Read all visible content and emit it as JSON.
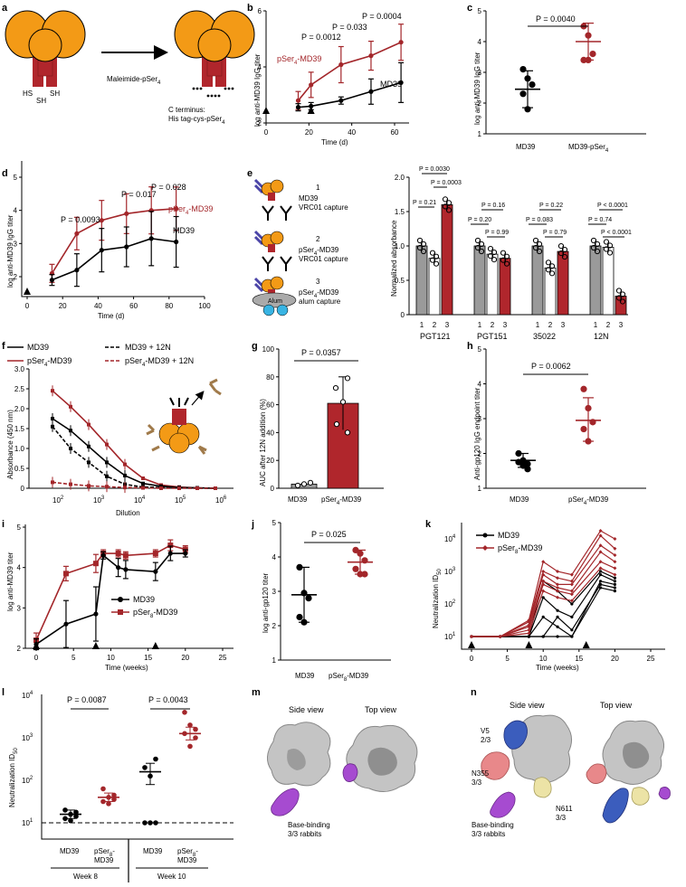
{
  "colors": {
    "red": "#a3262a",
    "black": "#000000",
    "orange": "#f39a16",
    "darkred": "#b0262c",
    "grey": "#9a9a9a",
    "cyan": "#38b4e3",
    "purple": "#a64bd0",
    "blue": "#3b5dbd",
    "pink": "#e8888a",
    "yellow": "#ece3a6"
  },
  "panels": {
    "a": {
      "letter": "a",
      "reagent": "Maleimide-pSer",
      "reagent_sub": "4",
      "terminus1": "C terminus:",
      "terminus2": "His tag-cys-pSer",
      "terminus2_sub": "4",
      "hs1": "HS",
      "sh": "SH",
      "hs2": "SH"
    },
    "b": {
      "letter": "b",
      "ylabel": "log anti-MD39 IgG titer",
      "xlabel": "Time (d)",
      "xticks": [
        "0",
        "20",
        "40",
        "60"
      ],
      "yticks": [
        "2",
        "4",
        "6"
      ],
      "label_red": "pSer",
      "label_red_sub": "4",
      "label_red_end": "-MD39",
      "label_black": "MD39",
      "pvals": [
        "P = 0.0012",
        "P = 0.033",
        "P = 0.0004"
      ]
    },
    "c": {
      "letter": "c",
      "ylabel": "log anti-MD39 IgG titer",
      "yticks": [
        "1",
        "2",
        "3",
        "4",
        "5"
      ],
      "cat1": "MD39",
      "cat2": "MD39-pSer",
      "cat2_sub": "4",
      "pval": "P = 0.0040"
    },
    "d": {
      "letter": "d",
      "ylabel": "log anti-MD39 IgG titer",
      "xlabel": "Time (d)",
      "xticks": [
        "0",
        "20",
        "40",
        "60",
        "80",
        "100"
      ],
      "yticks": [
        "2",
        "3",
        "4",
        "5"
      ],
      "label_red": "pSer",
      "label_red_sub": "4",
      "label_red_end": "-MD39",
      "label_black": "MD39",
      "pvals": [
        "P = 0.0093",
        "P = 0.017",
        "P = 0.028"
      ]
    },
    "e": {
      "letter": "e",
      "ylabel": "Normalized absorbance",
      "yticks": [
        "0",
        "0.5",
        "1.0",
        "1.5",
        "2.0"
      ],
      "groups": [
        "PGT121",
        "PGT151",
        "35022",
        "12N"
      ],
      "lane_labels": [
        "1",
        "2",
        "3"
      ],
      "cap1_num": "1",
      "cap1a": "MD39",
      "cap1b": "VRC01 capture",
      "cap2_num": "2",
      "cap2a": "pSer",
      "cap2a_sub": "4",
      "cap2a_end": "-MD39",
      "cap2b": "VRC01 capture",
      "cap3_num": "3",
      "cap3a": "pSer",
      "cap3a_sub": "4",
      "cap3a_end": "-MD39",
      "cap3b": "alum capture",
      "alum": "Alum",
      "bars": [
        [
          1.0,
          0.82,
          1.6
        ],
        [
          1.0,
          0.88,
          0.82
        ],
        [
          1.0,
          0.68,
          0.92
        ],
        [
          1.0,
          0.98,
          0.27
        ]
      ],
      "pvals": {
        "p121a": "P = 0.0030",
        "p121b": "P = 0.0003",
        "p121c": "P = 0.21",
        "p151a": "P = 0.16",
        "p151b": "P = 0.20",
        "p151c": "P = 0.99",
        "p350a": "P = 0.22",
        "p350b": "P = 0.083",
        "p350c": "P = 0.79",
        "p12a": "P < 0.0001",
        "p12b": "P = 0.74",
        "p12c": "P < 0.0001"
      }
    },
    "f": {
      "letter": "f",
      "ylabel": "Absorbance (450 nm)",
      "xlabel": "Dilution",
      "yticks": [
        "0",
        "0.5",
        "1.0",
        "1.5",
        "2.0",
        "2.5",
        "3.0"
      ],
      "xt1": "10",
      "xt1e": "2",
      "xt2": "10",
      "xt2e": "3",
      "xt3": "10",
      "xt3e": "4",
      "xt4": "10",
      "xt4e": "5",
      "xt5": "10",
      "xt5e": "6",
      "leg1": "MD39",
      "leg2": "pSer",
      "leg2_sub": "4",
      "leg2_end": "-MD39",
      "leg3": "MD39 + 12N",
      "leg4": "pSer",
      "leg4_sub": "4",
      "leg4_end": "-MD39 + 12N"
    },
    "g": {
      "letter": "g",
      "ylabel": "AUC after 12N addition (%)",
      "yticks": [
        "0",
        "20",
        "40",
        "60",
        "80",
        "100"
      ],
      "cat1": "MD39",
      "cat2": "pSer",
      "cat2_sub": "4",
      "cat2_end": "-MD39",
      "pval": "P = 0.0357",
      "values": [
        3,
        61
      ]
    },
    "h": {
      "letter": "h",
      "ylabel": "Anti-gp120 IgG endpoint titer",
      "yticks": [
        "1",
        "2",
        "3",
        "4",
        "5"
      ],
      "cat1": "MD39",
      "cat2": "pSer",
      "cat2_sub": "4",
      "cat2_end": "-MD39",
      "pval": "P = 0.0062"
    },
    "i": {
      "letter": "i",
      "ylabel": "log anti-MD39 titer",
      "xlabel": "Time (weeks)",
      "xticks": [
        "0",
        "5",
        "10",
        "15",
        "20",
        "25"
      ],
      "yticks": [
        "2",
        "3",
        "4",
        "5"
      ],
      "leg1": "MD39",
      "leg2": "pSer",
      "leg2_sub": "8",
      "leg2_end": "-MD39"
    },
    "j": {
      "letter": "j",
      "ylabel": "log anti-gp120 titer",
      "yticks": [
        "1",
        "2",
        "3",
        "4",
        "5"
      ],
      "cat1": "MD39",
      "cat2": "pSer",
      "cat2_sub": "8",
      "cat2_end": "-MD39",
      "pval": "P = 0.025"
    },
    "k": {
      "letter": "k",
      "ylabel": "Neutralization ID",
      "ylabel_sub": "50",
      "xlabel": "Time (weeks)",
      "xticks": [
        "0",
        "5",
        "10",
        "15",
        "20",
        "25"
      ],
      "yt1": "10",
      "yt1e": "1",
      "yt2": "10",
      "yt2e": "2",
      "yt3": "10",
      "yt3e": "3",
      "yt4": "10",
      "yt4e": "4",
      "leg1": "MD39",
      "leg2": "pSer",
      "leg2_sub": "8",
      "leg2_end": "-MD39"
    },
    "l": {
      "letter": "l",
      "ylabel": "Neutralization ID",
      "ylabel_sub": "50",
      "yt1": "10",
      "yt1e": "1",
      "yt2": "10",
      "yt2e": "2",
      "yt3": "10",
      "yt3e": "3",
      "yt4": "10",
      "yt4e": "4",
      "cat1": "MD39",
      "cat2a": "pSer",
      "cat2a_sub": "8",
      "cat2b": "MD39",
      "cat3": "MD39",
      "cat4a": "pSer",
      "cat4a_sub": "8",
      "cat4b": "MD39",
      "week1": "Week 8",
      "week2": "Week 10",
      "pval1": "P = 0.0087",
      "pval2": "P = 0.0043"
    },
    "m": {
      "letter": "m",
      "side": "Side view",
      "top": "Top view",
      "base1": "Base-binding",
      "base2": "3/3 rabbits"
    },
    "n": {
      "letter": "n",
      "side": "Side view",
      "top": "Top view",
      "v5": "V5",
      "v5n": "2/3",
      "n355": "N355",
      "n355n": "3/3",
      "n611": "N611",
      "n611n": "3/3",
      "base1": "Base-binding",
      "base2": "3/3 rabbits"
    }
  }
}
